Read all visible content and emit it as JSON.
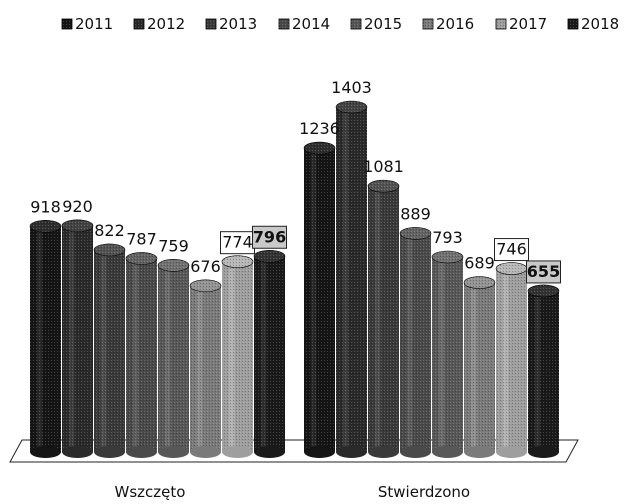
{
  "chart_data": {
    "type": "bar",
    "title": "",
    "xlabel": "",
    "ylabel": "",
    "ylim": [
      0,
      1403
    ],
    "grid": false,
    "legend_position": "top",
    "categories": [
      "Wszczęto",
      "Stwierdzono"
    ],
    "series": [
      {
        "name": "2011",
        "values": [
          918,
          1236
        ],
        "color": "#151515"
      },
      {
        "name": "2012",
        "values": [
          920,
          1403
        ],
        "color": "#2a2a2a"
      },
      {
        "name": "2013",
        "values": [
          822,
          1081
        ],
        "color": "#3a3a3a"
      },
      {
        "name": "2014",
        "values": [
          787,
          889
        ],
        "color": "#4a4a4a"
      },
      {
        "name": "2015",
        "values": [
          759,
          793
        ],
        "color": "#585858"
      },
      {
        "name": "2016",
        "values": [
          676,
          689
        ],
        "color": "#7a7a7a"
      },
      {
        "name": "2017",
        "values": [
          774,
          746
        ],
        "color": "#9e9e9e"
      },
      {
        "name": "2018",
        "values": [
          796,
          655
        ],
        "color": "#1a1a1a"
      }
    ],
    "boxed_labels": [
      "2017",
      "2018"
    ]
  }
}
